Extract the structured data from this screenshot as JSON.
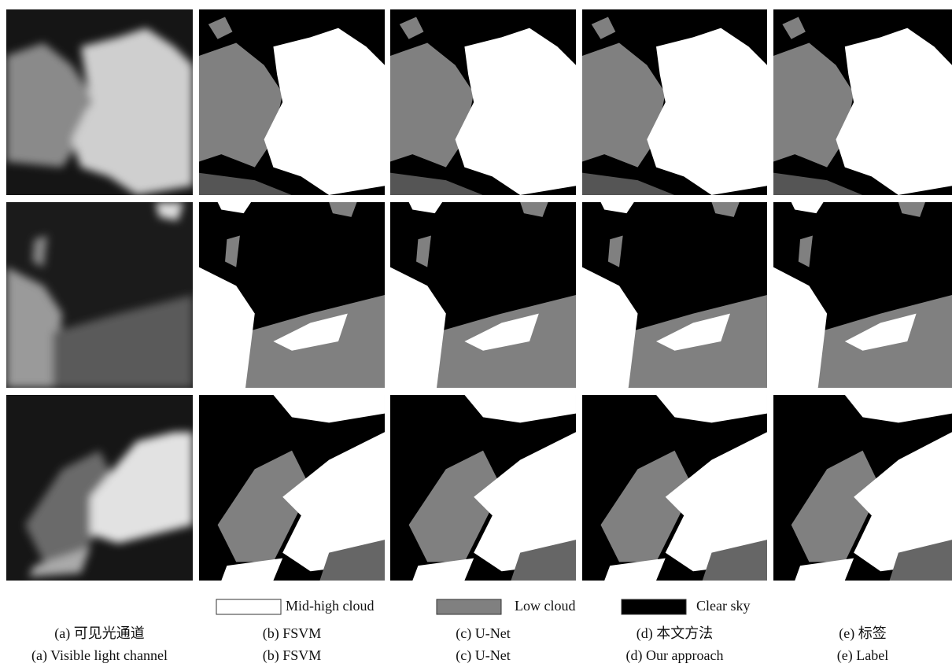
{
  "figure": {
    "legend": [
      {
        "label": "Mid-high cloud",
        "color": "#ffffff"
      },
      {
        "label": "Low cloud",
        "color": "#808080"
      },
      {
        "label": "Clear sky",
        "color": "#000000"
      }
    ],
    "panels": [
      {
        "caption_zh": "(a) 可见光通道",
        "caption_en": "(a) Visible light channel"
      },
      {
        "caption_zh": "(b) FSVM",
        "caption_en": "(b) FSVM"
      },
      {
        "caption_zh": "(c) U-Net",
        "caption_en": "(c) U-Net"
      },
      {
        "caption_zh": "(d) 本文方法",
        "caption_en": "(d) Our approach"
      },
      {
        "caption_zh": "(e) 标签",
        "caption_en": "(e) Label"
      }
    ]
  }
}
